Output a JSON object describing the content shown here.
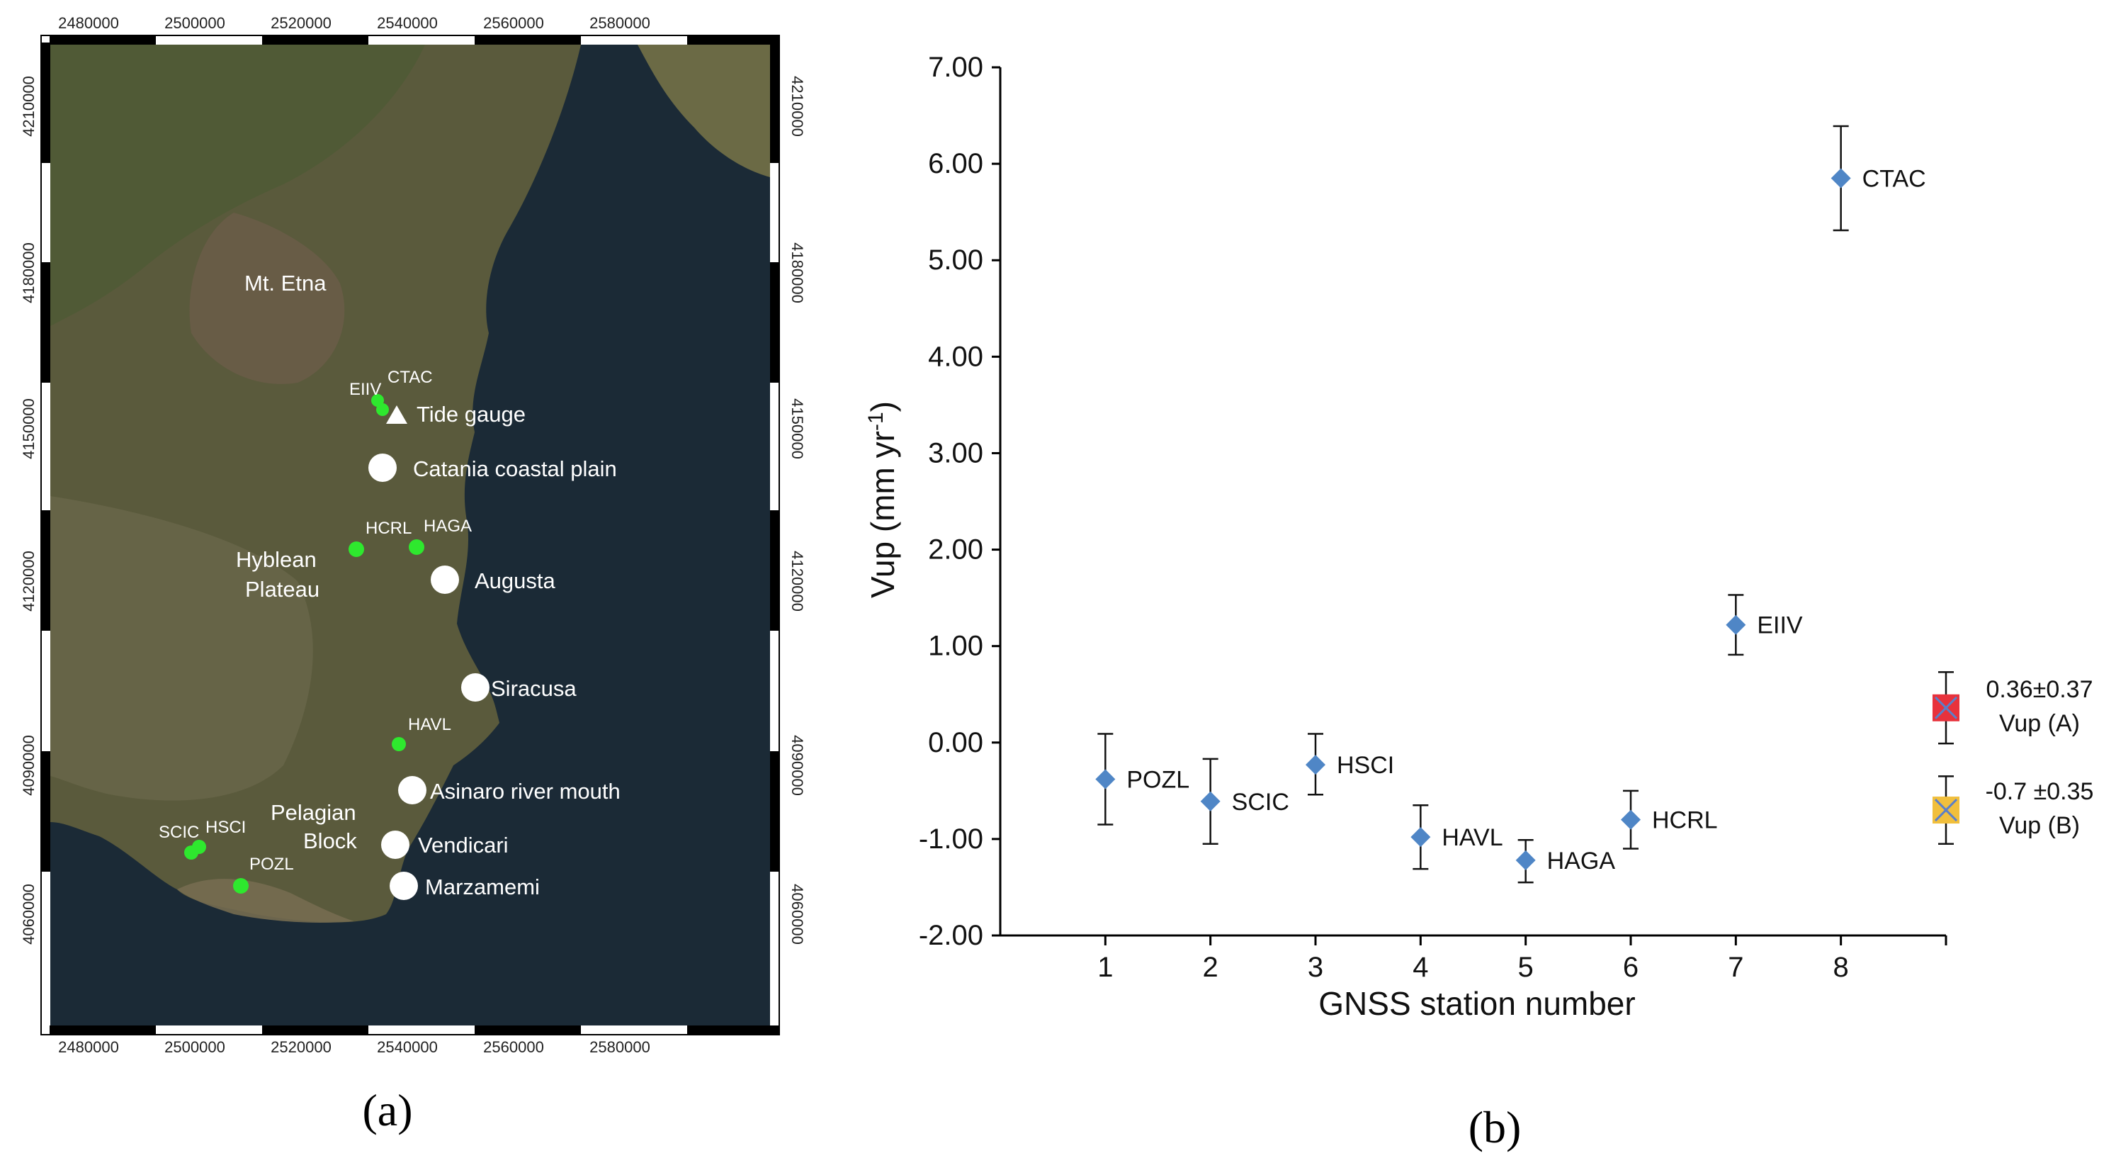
{
  "figure": {
    "panel_a_letter": "(a)",
    "panel_b_letter": "(b)"
  },
  "map": {
    "x_ticks": [
      "2480000",
      "2500000",
      "2520000",
      "2540000",
      "2560000",
      "2580000"
    ],
    "y_ticks": [
      "4210000",
      "4180000",
      "4150000",
      "4120000",
      "4090000",
      "4060000"
    ],
    "labels": {
      "etna": "Mt. Etna",
      "eiiv": "EIIV",
      "ctac": "CTAC",
      "tide_gauge": "Tide gauge",
      "catania": "Catania coastal plain",
      "hcrl": "HCRL",
      "haga": "HAGA",
      "hyblean_1": "Hyblean",
      "hyblean_2": "Plateau",
      "augusta": "Augusta",
      "siracusa": "Siracusa",
      "havl": "HAVL",
      "asinaro": "Asinaro river mouth",
      "pelagian_1": "Pelagian",
      "pelagian_2": "Block",
      "scic": "SCIC",
      "hsci": "HSCI",
      "pozl": "POZL",
      "vendicari": "Vendicari",
      "marzamemi": "Marzamemi"
    },
    "colors": {
      "sea": "#1b2a36",
      "land": "#5a5a3c",
      "gnss": "#2ee82e",
      "site": "#ffffff"
    }
  },
  "chart_data": {
    "type": "scatter",
    "title": "",
    "xlabel": "GNSS station number",
    "ylabel": "Vup (mm yr",
    "ylabel_sup": "-1",
    "ylabel_close": ")",
    "xlim": [
      0,
      9
    ],
    "ylim": [
      -2,
      7
    ],
    "x_ticks": [
      "1",
      "2",
      "3",
      "4",
      "5",
      "6",
      "7",
      "8"
    ],
    "y_ticks": [
      "7.00",
      "6.00",
      "5.00",
      "4.00",
      "3.00",
      "2.00",
      "1.00",
      "0.00",
      "-1.00",
      "-2.00"
    ],
    "grid": false,
    "series": [
      {
        "marker": "diamond",
        "color": "#4f86c6",
        "points": [
          {
            "x": 1,
            "y": -0.38,
            "err_low": -0.85,
            "err_high": 0.09,
            "label": "POZL"
          },
          {
            "x": 2,
            "y": -0.61,
            "err_low": -1.05,
            "err_high": -0.17,
            "label": "SCIC"
          },
          {
            "x": 3,
            "y": -0.23,
            "err_low": -0.54,
            "err_high": 0.09,
            "label": "HSCI"
          },
          {
            "x": 4,
            "y": -0.98,
            "err_low": -1.31,
            "err_high": -0.65,
            "label": "HAVL"
          },
          {
            "x": 5,
            "y": -1.22,
            "err_low": -1.45,
            "err_high": -1.01,
            "label": "HAGA"
          },
          {
            "x": 6,
            "y": -0.8,
            "err_low": -1.1,
            "err_high": -0.5,
            "label": "HCRL"
          },
          {
            "x": 7,
            "y": 1.22,
            "err_low": 0.91,
            "err_high": 1.53,
            "label": "EIIV"
          },
          {
            "x": 8,
            "y": 5.85,
            "err_low": 5.31,
            "err_high": 6.39,
            "label": "CTAC"
          }
        ]
      },
      {
        "marker": "square-cross",
        "color": "#e8323c",
        "points": [
          {
            "x": 9,
            "y": 0.36,
            "err_low": -0.01,
            "err_high": 0.73,
            "label": "0.36±0.37",
            "label2": "Vup (A)"
          }
        ]
      },
      {
        "marker": "square-cross",
        "color": "#f1bf3c",
        "points": [
          {
            "x": 9,
            "y": -0.7,
            "err_low": -1.05,
            "err_high": -0.35,
            "label": "-0.7 ±0.35",
            "label2": "Vup (B)"
          }
        ]
      }
    ]
  }
}
